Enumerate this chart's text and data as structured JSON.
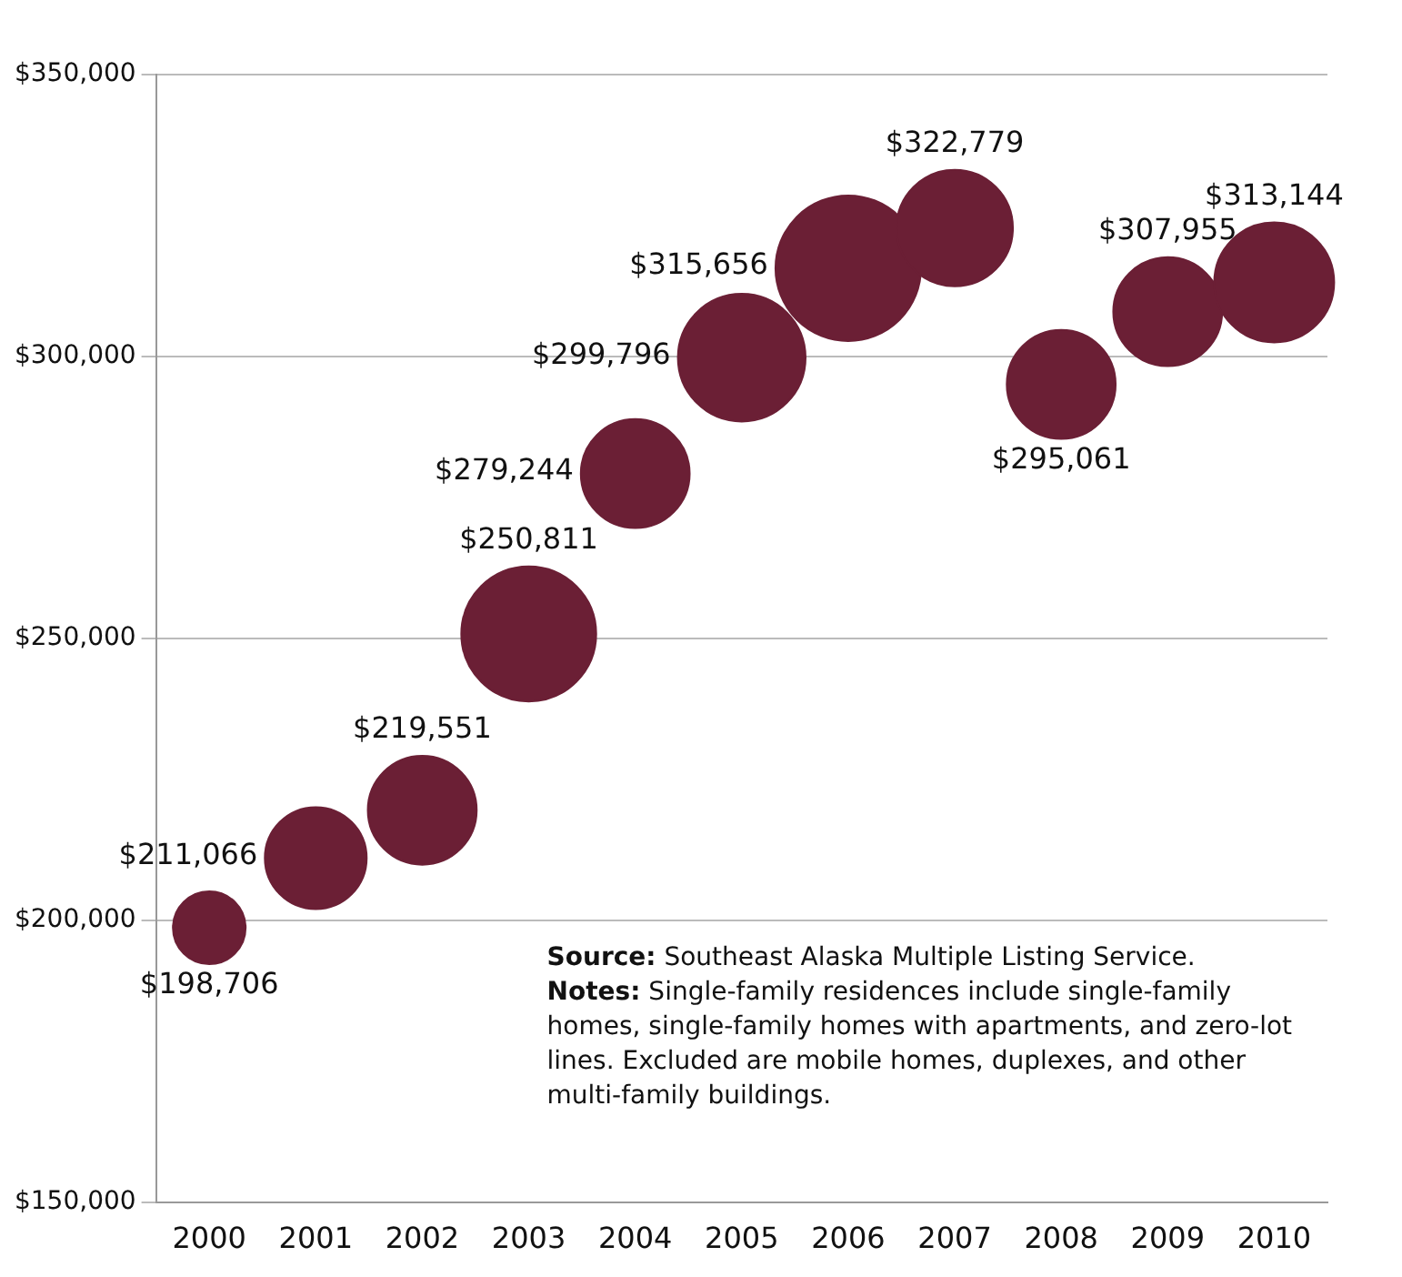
{
  "chart_data": {
    "type": "bubble",
    "categories": [
      "2000",
      "2001",
      "2002",
      "2003",
      "2004",
      "2005",
      "2006",
      "2007",
      "2008",
      "2009",
      "2010"
    ],
    "values": [
      198706,
      211066,
      219551,
      250811,
      279244,
      299796,
      315656,
      322779,
      295061,
      307955,
      313144
    ],
    "sizes": [
      0.25,
      0.49,
      0.56,
      0.86,
      0.56,
      0.77,
      1,
      0.64,
      0.56,
      0.56,
      0.68
    ],
    "value_labels": [
      "$198,706",
      "$211,066",
      "$219,551",
      "$250,811",
      "$279,244",
      "$299,796",
      "$315,656",
      "$322,779",
      "$295,061",
      "$307,955",
      "$313,144"
    ],
    "color": "#6b1f35",
    "ylim": [
      150000,
      350000
    ],
    "yticks": [
      {
        "value": 150000,
        "label": "$150,000"
      },
      {
        "value": 200000,
        "label": "$200,000"
      },
      {
        "value": 250000,
        "label": "$250,000"
      },
      {
        "value": 300000,
        "label": "$300,000"
      },
      {
        "value": 350000,
        "label": "$350,000"
      }
    ],
    "grid": "y",
    "legend": false,
    "annotations": [
      "Source: Southeast Alaska Multiple Listing Service.",
      "Notes: Single-family residences include single-family homes, single-family homes with apartments, and zero-lot lines. Excluded are mobile homes, duplexes, and other multi-family buildings."
    ]
  }
}
